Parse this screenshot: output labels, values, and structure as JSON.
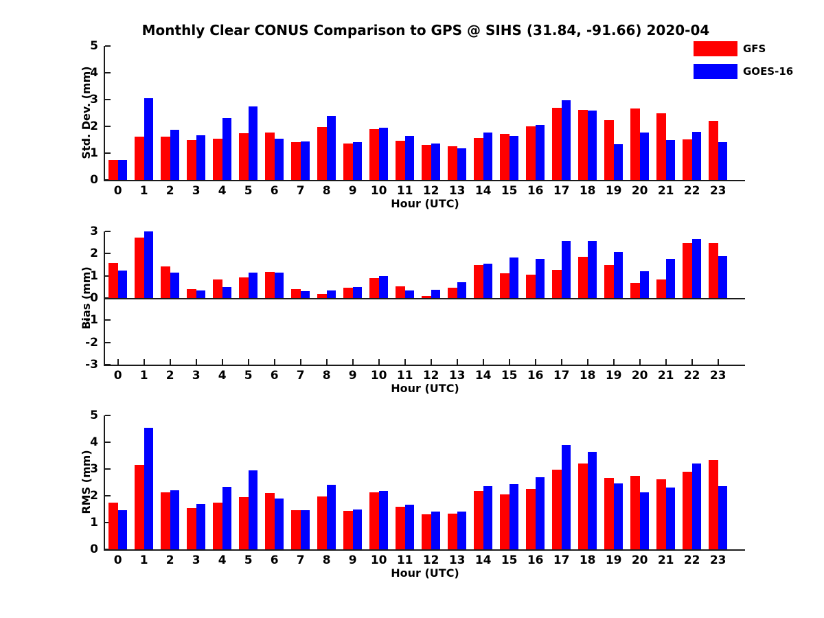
{
  "title": "Monthly Clear CONUS Comparison to GPS @ SIHS (31.84, -91.66) 2020-04",
  "legend": {
    "items": [
      {
        "label": "GFS",
        "color": "#ff0000"
      },
      {
        "label": "GOES-16",
        "color": "#0000ff"
      }
    ]
  },
  "colors": {
    "gfs": "#ff0000",
    "goes16": "#0000ff",
    "axis": "#1a1a1a"
  },
  "chart_data": [
    {
      "type": "bar",
      "ylabel": "Std. Dev. (mm)",
      "xlabel": "Hour (UTC)",
      "ylim": [
        0,
        5
      ],
      "yticks": [
        0,
        1,
        2,
        3,
        4,
        5
      ],
      "baseline": 0,
      "show_x_ticks": false,
      "categories": [
        "0",
        "1",
        "2",
        "3",
        "4",
        "5",
        "6",
        "7",
        "8",
        "9",
        "10",
        "11",
        "12",
        "13",
        "14",
        "15",
        "16",
        "17",
        "18",
        "19",
        "20",
        "21",
        "22",
        "23"
      ],
      "series": [
        {
          "name": "GFS",
          "color": "#ff0000",
          "values": [
            0.75,
            1.62,
            1.62,
            1.5,
            1.55,
            1.75,
            1.78,
            1.4,
            1.97,
            1.35,
            1.91,
            1.47,
            1.32,
            1.25,
            1.57,
            1.71,
            2.01,
            2.68,
            2.61,
            2.22,
            2.66,
            2.49,
            1.51,
            2.2
          ]
        },
        {
          "name": "GOES-16",
          "color": "#0000ff",
          "values": [
            0.75,
            3.05,
            1.88,
            1.67,
            2.32,
            2.75,
            1.55,
            1.44,
            2.38,
            1.41,
            1.95,
            1.65,
            1.35,
            1.19,
            1.77,
            1.63,
            2.06,
            2.98,
            2.58,
            1.34,
            1.78,
            1.48,
            1.8,
            1.41
          ]
        }
      ]
    },
    {
      "type": "bar",
      "ylabel": "Bias (mm)",
      "xlabel": "Hour (UTC)",
      "ylim": [
        -3,
        3
      ],
      "yticks": [
        -3,
        -2,
        -1,
        0,
        1,
        2,
        3
      ],
      "baseline": 0,
      "show_x_ticks": true,
      "categories": [
        "0",
        "1",
        "2",
        "3",
        "4",
        "5",
        "6",
        "7",
        "8",
        "9",
        "10",
        "11",
        "12",
        "13",
        "14",
        "15",
        "16",
        "17",
        "18",
        "19",
        "20",
        "21",
        "22",
        "23"
      ],
      "series": [
        {
          "name": "GFS",
          "color": "#ff0000",
          "values": [
            1.57,
            2.73,
            1.41,
            0.41,
            0.82,
            0.93,
            1.19,
            0.41,
            0.18,
            0.46,
            0.9,
            0.52,
            0.1,
            0.45,
            1.5,
            1.1,
            1.06,
            1.28,
            1.86,
            1.48,
            0.67,
            0.85,
            2.46,
            2.48
          ]
        },
        {
          "name": "GOES-16",
          "color": "#0000ff",
          "values": [
            1.23,
            3.01,
            1.15,
            0.35,
            0.51,
            1.15,
            1.15,
            0.32,
            0.34,
            0.49,
            1.0,
            0.35,
            0.38,
            0.72,
            1.56,
            1.82,
            1.75,
            2.57,
            2.56,
            2.07,
            1.21,
            1.76,
            2.65,
            1.89
          ]
        }
      ]
    },
    {
      "type": "bar",
      "ylabel": "RMS (mm)",
      "xlabel": "Hour (UTC)",
      "ylim": [
        0,
        5
      ],
      "yticks": [
        0,
        1,
        2,
        3,
        4,
        5
      ],
      "baseline": 0,
      "show_x_ticks": false,
      "categories": [
        "0",
        "1",
        "2",
        "3",
        "4",
        "5",
        "6",
        "7",
        "8",
        "9",
        "10",
        "11",
        "12",
        "13",
        "14",
        "15",
        "16",
        "17",
        "18",
        "19",
        "20",
        "21",
        "22",
        "23"
      ],
      "series": [
        {
          "name": "GFS",
          "color": "#ff0000",
          "values": [
            1.74,
            3.16,
            2.13,
            1.54,
            1.74,
            1.94,
            2.11,
            1.45,
            1.97,
            1.44,
            2.13,
            1.59,
            1.3,
            1.33,
            2.17,
            2.05,
            2.26,
            2.97,
            3.2,
            2.66,
            2.75,
            2.62,
            2.89,
            3.34
          ]
        },
        {
          "name": "GOES-16",
          "color": "#0000ff",
          "values": [
            1.46,
            4.55,
            2.21,
            1.7,
            2.34,
            2.95,
            1.91,
            1.46,
            2.41,
            1.49,
            2.17,
            1.67,
            1.42,
            1.42,
            2.36,
            2.43,
            2.68,
            3.9,
            3.64,
            2.46,
            2.13,
            2.31,
            3.2,
            2.36
          ]
        }
      ]
    }
  ]
}
